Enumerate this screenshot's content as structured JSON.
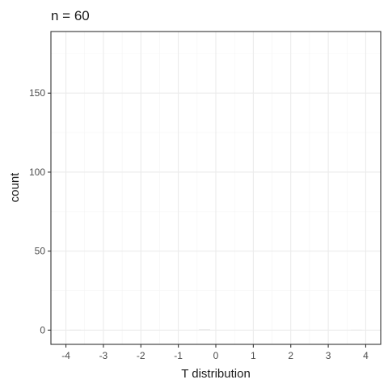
{
  "chart_data": {
    "type": "bar",
    "title": "n = 60",
    "xlabel": "T distribution",
    "ylabel": "count",
    "x_ticks": [
      "-4",
      "-3",
      "-2",
      "-1",
      "0",
      "1",
      "2",
      "3",
      "4"
    ],
    "y_ticks": [
      "0",
      "50",
      "100",
      "150"
    ],
    "xlim": [
      -4.4,
      4.4
    ],
    "ylim": [
      -9,
      189
    ],
    "grid": true,
    "bins": [
      {
        "x0": -3.9,
        "x1": -3.6,
        "count": 0.3
      },
      {
        "x0": -0.45,
        "x1": -0.15,
        "count": 0.6
      },
      {
        "x0": 3.6,
        "x1": 3.9,
        "count": 0.3
      }
    ]
  },
  "colors": {
    "panel_border": "#333333",
    "grid_major": "#ebebeb",
    "grid_minor": "#f4f4f4",
    "bar_fill": "#e6e6e6"
  }
}
